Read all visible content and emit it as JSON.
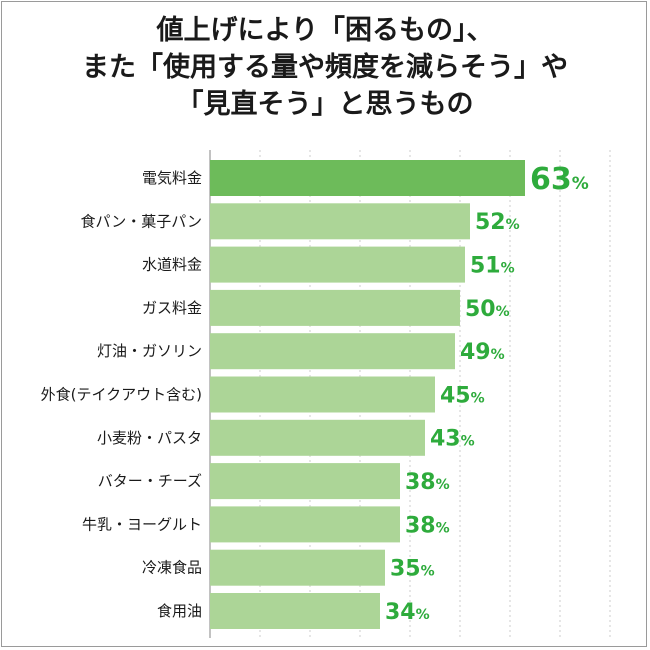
{
  "title_lines": [
    "値上げにより「困るもの」、",
    "また「使用する量や頻度を減らそう」や",
    "「見直そう」と思うもの"
  ],
  "colors": {
    "highlight_bar": "#6dbb5a",
    "bar": "#acd597",
    "value_text": "#2eab3c",
    "grid": "#cccccc"
  },
  "chart_data": {
    "type": "bar",
    "orientation": "horizontal",
    "unit": "%",
    "categories": [
      "電気料金",
      "食パン・菓子パン",
      "水道料金",
      "ガス料金",
      "灯油・ガソリン",
      "外食(テイクアウト含む)",
      "小麦粉・パスタ",
      "バター・チーズ",
      "牛乳・ヨーグルト",
      "冷凍食品",
      "食用油"
    ],
    "values": [
      63,
      52,
      51,
      50,
      49,
      45,
      43,
      38,
      38,
      35,
      34
    ],
    "highlight_index": 0,
    "xlim": [
      0,
      80
    ],
    "grid": true,
    "grid_step": 10,
    "legend": "none"
  }
}
